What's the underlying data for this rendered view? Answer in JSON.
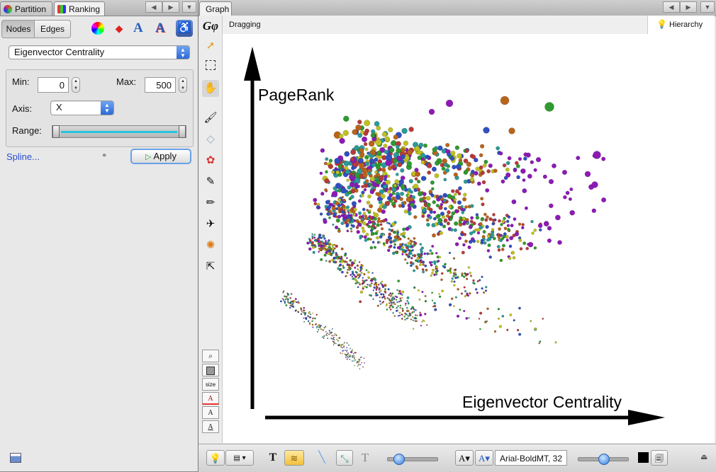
{
  "left_panel": {
    "tabs": [
      {
        "label": "Partition"
      },
      {
        "label": "Ranking"
      }
    ],
    "subtabs": [
      {
        "label": "Nodes"
      },
      {
        "label": "Edges"
      }
    ],
    "ranking_select": "Eigenvector Centrality",
    "min_label": "Min:",
    "min_value": "0",
    "max_label": "Max:",
    "max_value": "500",
    "axis_label": "Axis:",
    "axis_value": "X",
    "range_label": "Range:",
    "spline_link": "Spline...",
    "apply_label": "Apply"
  },
  "graph_panel": {
    "tab_label": "Graph",
    "mode_text": "Dragging",
    "hierarchy_label": "Hierarchy",
    "size_label": "size",
    "y_axis_label": "PageRank",
    "x_axis_label": "Eigenvector Centrality",
    "font_field": "Arial-BoldMT, 32"
  },
  "colors": {
    "accent_blue": "#2c6ad6",
    "range_cyan": "#28c4e0",
    "node_purple": "#8e1ab6",
    "node_green": "#2f9a2f",
    "node_red": "#b83a3a",
    "node_orange": "#b8641c",
    "node_teal": "#2a9a9a",
    "node_blue": "#3050c0"
  }
}
